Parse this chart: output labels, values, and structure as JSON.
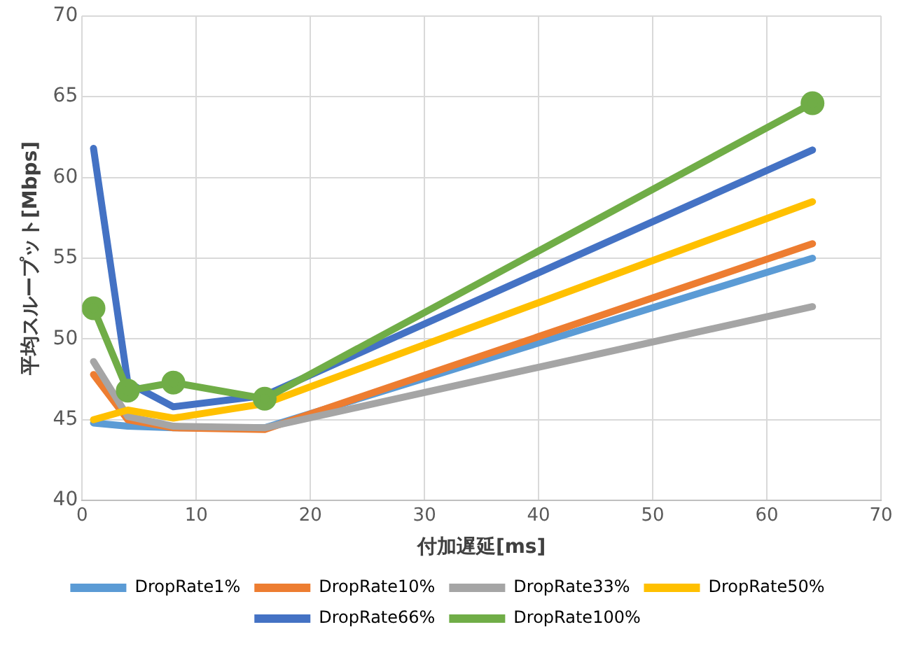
{
  "chart_data": {
    "type": "line",
    "xlabel": "付加遅延[ms]",
    "ylabel": "平均スループット[Mbps]",
    "x": [
      1,
      4,
      8,
      16,
      64
    ],
    "xlim": [
      0,
      70
    ],
    "xticks": [
      0,
      10,
      20,
      30,
      40,
      50,
      60,
      70
    ],
    "ylim": [
      40,
      70
    ],
    "yticks": [
      40,
      45,
      50,
      55,
      60,
      65,
      70
    ],
    "grid": true,
    "legend": "bottom",
    "marker": "none",
    "line_style": "solid",
    "series": [
      {
        "name": "DropRate1%",
        "color": "#5b9bd5",
        "values": [
          44.8,
          44.6,
          44.5,
          44.5,
          55.0
        ]
      },
      {
        "name": "DropRate10%",
        "color": "#ed7d31",
        "values": [
          47.8,
          45.0,
          44.5,
          44.4,
          55.9
        ]
      },
      {
        "name": "DropRate33%",
        "color": "#a5a5a5",
        "values": [
          48.6,
          45.2,
          44.6,
          44.5,
          52.0
        ]
      },
      {
        "name": "DropRate50%",
        "color": "#ffc000",
        "values": [
          45.0,
          45.6,
          45.1,
          46.0,
          58.5
        ]
      },
      {
        "name": "DropRate66%",
        "color": "#4472c4",
        "values": [
          61.8,
          47.3,
          45.8,
          46.5,
          61.7
        ]
      },
      {
        "name": "DropRate100%",
        "color": "#70ad47",
        "values": [
          51.9,
          46.8,
          47.3,
          46.3,
          64.6
        ],
        "marker": "circle"
      }
    ]
  }
}
